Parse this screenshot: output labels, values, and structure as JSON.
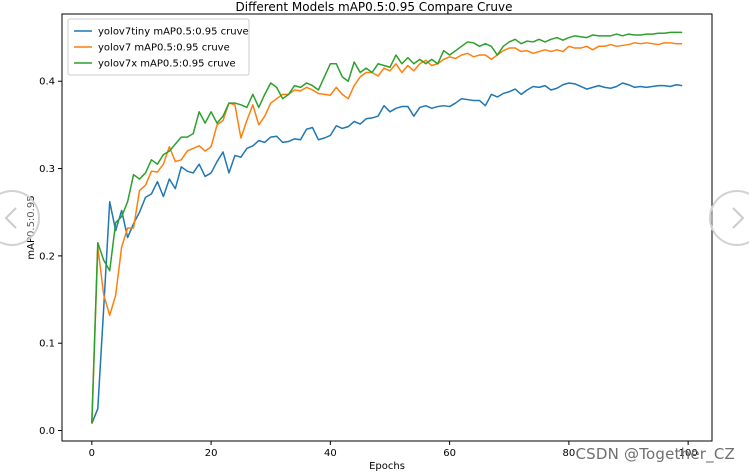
{
  "chart_data": {
    "type": "line",
    "title": "Different Models mAP0.5:0.95 Compare Cruve",
    "xlabel": "Epochs",
    "ylabel": "mAP0.5:0.95",
    "xlim": [
      -5,
      104
    ],
    "ylim": [
      -0.012,
      0.477
    ],
    "xticks": [
      0,
      20,
      40,
      60,
      80,
      100
    ],
    "yticks": [
      0.0,
      0.1,
      0.2,
      0.3,
      0.4
    ],
    "xtick_labels": [
      "0",
      "20",
      "40",
      "60",
      "80",
      "100"
    ],
    "ytick_labels": [
      "0.0",
      "0.1",
      "0.2",
      "0.3",
      "0.4"
    ],
    "grid": false,
    "legend_position": "top-left",
    "x": [
      0,
      1,
      2,
      3,
      4,
      5,
      6,
      7,
      8,
      9,
      10,
      11,
      12,
      13,
      14,
      15,
      16,
      17,
      18,
      19,
      20,
      21,
      22,
      23,
      24,
      25,
      26,
      27,
      28,
      29,
      30,
      31,
      32,
      33,
      34,
      35,
      36,
      37,
      38,
      39,
      40,
      41,
      42,
      43,
      44,
      45,
      46,
      47,
      48,
      49,
      50,
      51,
      52,
      53,
      54,
      55,
      56,
      57,
      58,
      59,
      60,
      61,
      62,
      63,
      64,
      65,
      66,
      67,
      68,
      69,
      70,
      71,
      72,
      73,
      74,
      75,
      76,
      77,
      78,
      79,
      80,
      81,
      82,
      83,
      84,
      85,
      86,
      87,
      88,
      89,
      90,
      91,
      92,
      93,
      94,
      95,
      96,
      97,
      98,
      99
    ],
    "series": [
      {
        "name": "yolov7tiny mAP0.5:0.95 cruve",
        "color": "#1f77b4",
        "values": [
          0.008,
          0.025,
          0.141,
          0.262,
          0.229,
          0.252,
          0.221,
          0.237,
          0.25,
          0.267,
          0.271,
          0.285,
          0.268,
          0.288,
          0.277,
          0.302,
          0.297,
          0.295,
          0.305,
          0.291,
          0.295,
          0.308,
          0.319,
          0.295,
          0.315,
          0.313,
          0.323,
          0.326,
          0.332,
          0.33,
          0.336,
          0.337,
          0.33,
          0.331,
          0.334,
          0.333,
          0.345,
          0.347,
          0.333,
          0.335,
          0.338,
          0.349,
          0.346,
          0.348,
          0.354,
          0.351,
          0.357,
          0.358,
          0.36,
          0.372,
          0.365,
          0.369,
          0.371,
          0.371,
          0.36,
          0.37,
          0.372,
          0.369,
          0.371,
          0.372,
          0.371,
          0.375,
          0.38,
          0.379,
          0.378,
          0.378,
          0.372,
          0.385,
          0.382,
          0.386,
          0.388,
          0.391,
          0.385,
          0.39,
          0.394,
          0.393,
          0.395,
          0.39,
          0.392,
          0.396,
          0.398,
          0.397,
          0.394,
          0.391,
          0.393,
          0.395,
          0.393,
          0.392,
          0.394,
          0.398,
          0.396,
          0.393,
          0.394,
          0.393,
          0.394,
          0.395,
          0.395,
          0.394,
          0.396,
          0.395
        ]
      },
      {
        "name": "yolov7 mAP0.5:0.95 cruve",
        "color": "#ff7f0e",
        "values": [
          0.008,
          0.21,
          0.155,
          0.132,
          0.155,
          0.21,
          0.232,
          0.232,
          0.275,
          0.281,
          0.297,
          0.296,
          0.305,
          0.325,
          0.308,
          0.31,
          0.32,
          0.323,
          0.326,
          0.32,
          0.325,
          0.35,
          0.355,
          0.375,
          0.373,
          0.335,
          0.355,
          0.373,
          0.35,
          0.36,
          0.375,
          0.38,
          0.385,
          0.385,
          0.39,
          0.389,
          0.393,
          0.39,
          0.386,
          0.385,
          0.384,
          0.393,
          0.385,
          0.38,
          0.395,
          0.405,
          0.41,
          0.41,
          0.406,
          0.415,
          0.412,
          0.42,
          0.41,
          0.418,
          0.412,
          0.42,
          0.424,
          0.418,
          0.42,
          0.425,
          0.428,
          0.426,
          0.43,
          0.432,
          0.428,
          0.43,
          0.43,
          0.425,
          0.43,
          0.435,
          0.438,
          0.438,
          0.434,
          0.435,
          0.432,
          0.434,
          0.436,
          0.434,
          0.436,
          0.434,
          0.44,
          0.438,
          0.438,
          0.44,
          0.436,
          0.44,
          0.44,
          0.442,
          0.44,
          0.441,
          0.442,
          0.444,
          0.443,
          0.444,
          0.443,
          0.442,
          0.444,
          0.444,
          0.443,
          0.443
        ]
      },
      {
        "name": "yolov7x mAP0.5:0.95 cruve",
        "color": "#2ca02c",
        "values": [
          0.008,
          0.215,
          0.195,
          0.183,
          0.238,
          0.245,
          0.262,
          0.293,
          0.288,
          0.295,
          0.31,
          0.305,
          0.316,
          0.32,
          0.328,
          0.336,
          0.336,
          0.34,
          0.365,
          0.352,
          0.365,
          0.352,
          0.36,
          0.375,
          0.375,
          0.373,
          0.37,
          0.385,
          0.37,
          0.385,
          0.398,
          0.393,
          0.38,
          0.385,
          0.395,
          0.393,
          0.398,
          0.395,
          0.39,
          0.405,
          0.42,
          0.42,
          0.405,
          0.4,
          0.422,
          0.41,
          0.415,
          0.41,
          0.42,
          0.418,
          0.416,
          0.43,
          0.42,
          0.427,
          0.42,
          0.425,
          0.42,
          0.425,
          0.42,
          0.435,
          0.43,
          0.435,
          0.44,
          0.445,
          0.444,
          0.44,
          0.443,
          0.44,
          0.43,
          0.44,
          0.445,
          0.448,
          0.443,
          0.446,
          0.445,
          0.448,
          0.445,
          0.448,
          0.45,
          0.447,
          0.45,
          0.452,
          0.451,
          0.45,
          0.453,
          0.452,
          0.452,
          0.452,
          0.454,
          0.452,
          0.454,
          0.453,
          0.453,
          0.454,
          0.454,
          0.455,
          0.455,
          0.456,
          0.456,
          0.456
        ]
      }
    ]
  },
  "watermark": "CSDN @Together_CZ",
  "icons": {
    "prev": "chevron-left-icon",
    "next": "chevron-right-icon"
  }
}
